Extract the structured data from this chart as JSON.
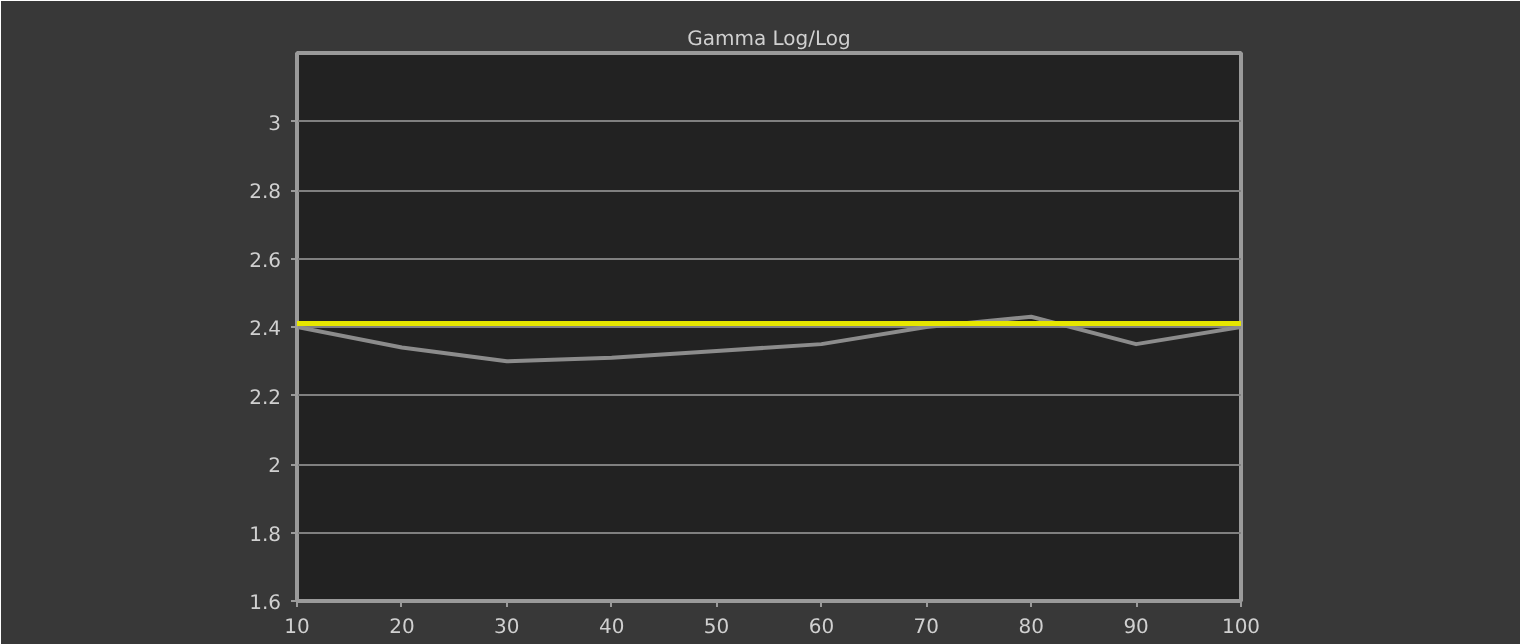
{
  "chart_data": {
    "type": "line",
    "title": "Gamma Log/Log",
    "x": [
      10,
      20,
      30,
      40,
      50,
      60,
      70,
      80,
      90,
      100
    ],
    "series": [
      {
        "color": "#8c8c8c",
        "values": [
          2.4,
          2.34,
          2.3,
          2.31,
          2.33,
          2.35,
          2.4,
          2.43,
          2.35,
          2.4
        ]
      }
    ],
    "xlim": [
      10,
      100
    ],
    "xticks": [
      10,
      20,
      30,
      40,
      50,
      60,
      70,
      80,
      90,
      100
    ],
    "ylim": [
      1.6,
      3.2
    ],
    "yticks": [
      {
        "value": 1.6,
        "label": "1.6"
      },
      {
        "value": 1.8,
        "label": "1.8"
      },
      {
        "value": 2,
        "label": "2"
      },
      {
        "value": 2.2,
        "label": "2.2"
      },
      {
        "value": 2.4,
        "label": "2.4"
      },
      {
        "value": 2.6,
        "label": "2.6"
      },
      {
        "value": 2.8,
        "label": "2.8"
      },
      {
        "value": 3,
        "label": "3"
      }
    ],
    "grid": "y",
    "marker": "none",
    "line_style": "solid",
    "ref_lines": [
      {
        "axis": "y",
        "value": 2.41,
        "color": "#e6e600"
      }
    ]
  }
}
